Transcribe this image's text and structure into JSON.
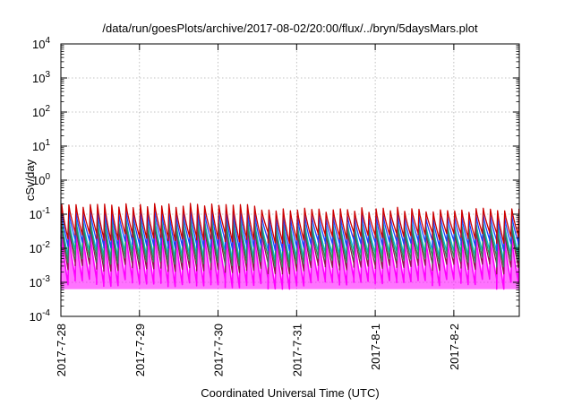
{
  "chart_data": {
    "type": "line",
    "title": "/data/run/goesPlots/archive/2017-08-02/20:00/flux/../bryn/5daysMars.plot",
    "xlabel": "Coordinated Universal Time (UTC)",
    "ylabel": "cSv/day",
    "y_scale": "log",
    "ylim": [
      0.0001,
      10000
    ],
    "y_ticks": [
      {
        "value": 0.0001,
        "base": "10",
        "exp": "-4"
      },
      {
        "value": 0.001,
        "base": "10",
        "exp": "-3"
      },
      {
        "value": 0.01,
        "base": "10",
        "exp": "-2"
      },
      {
        "value": 0.1,
        "base": "10",
        "exp": "-1"
      },
      {
        "value": 1,
        "base": "10",
        "exp": "0"
      },
      {
        "value": 10,
        "base": "10",
        "exp": "1"
      },
      {
        "value": 100,
        "base": "10",
        "exp": "2"
      },
      {
        "value": 1000,
        "base": "10",
        "exp": "3"
      },
      {
        "value": 10000,
        "base": "10",
        "exp": "4"
      }
    ],
    "xlim": [
      "2017-07-28",
      "2017-08-02T20:00"
    ],
    "x_ticks": [
      {
        "label": "2017-7-28",
        "day": 0
      },
      {
        "label": "2017-7-29",
        "day": 1
      },
      {
        "label": "2017-7-30",
        "day": 2
      },
      {
        "label": "2017-7-31",
        "day": 3
      },
      {
        "label": "2017-8-1",
        "day": 4
      },
      {
        "label": "2017-8-2",
        "day": 5
      }
    ],
    "x_end_day": 5.833,
    "grid": true,
    "cycles_per_day": 11,
    "series": [
      {
        "color": "#ff00ff",
        "peak": 0.02,
        "min": 0.0009,
        "fill": true
      },
      {
        "color": "#8b1a4a",
        "peak": 0.035,
        "min": 0.0025,
        "fill": false
      },
      {
        "color": "#00bcd4",
        "peak": 0.055,
        "min": 0.006,
        "fill": false
      },
      {
        "color": "#2e8b57",
        "peak": 0.045,
        "min": 0.004,
        "fill": false
      },
      {
        "color": "#2040ff",
        "peak": 0.09,
        "min": 0.012,
        "fill": false
      },
      {
        "color": "#cc0000",
        "peak": 0.14,
        "min": 0.02,
        "fill": false
      }
    ]
  }
}
